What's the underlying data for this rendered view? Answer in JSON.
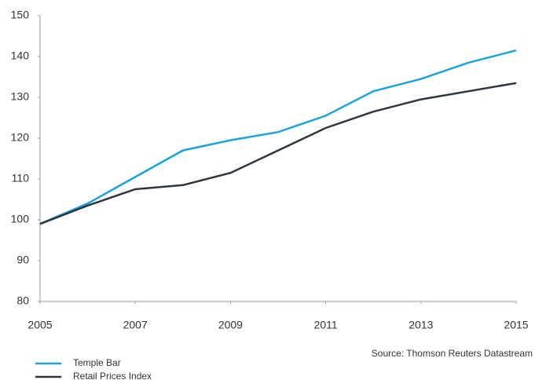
{
  "chart_data": {
    "type": "line",
    "x": [
      2005,
      2006,
      2007,
      2008,
      2009,
      2010,
      2011,
      2012,
      2013,
      2014,
      2015
    ],
    "series": [
      {
        "name": "Temple Bar",
        "color": "#1aa3d9",
        "values": [
          99,
          104,
          110.5,
          117,
          119.5,
          121.5,
          125.5,
          131.5,
          134.5,
          138.5,
          141.5
        ]
      },
      {
        "name": "Retail Prices Index",
        "color": "#2d3640",
        "values": [
          99,
          103.5,
          107.5,
          108.5,
          111.5,
          117,
          122.5,
          126.5,
          129.5,
          131.5,
          133.5
        ]
      }
    ],
    "xlim": [
      2005,
      2015
    ],
    "xticks": [
      2005,
      2007,
      2009,
      2011,
      2013,
      2015
    ],
    "ylim": [
      80,
      150
    ],
    "yticks": [
      80,
      90,
      100,
      110,
      120,
      130,
      140,
      150
    ],
    "source": "Source: Thomson Reuters Datastream",
    "grid": false,
    "legend": "bottom-left"
  }
}
